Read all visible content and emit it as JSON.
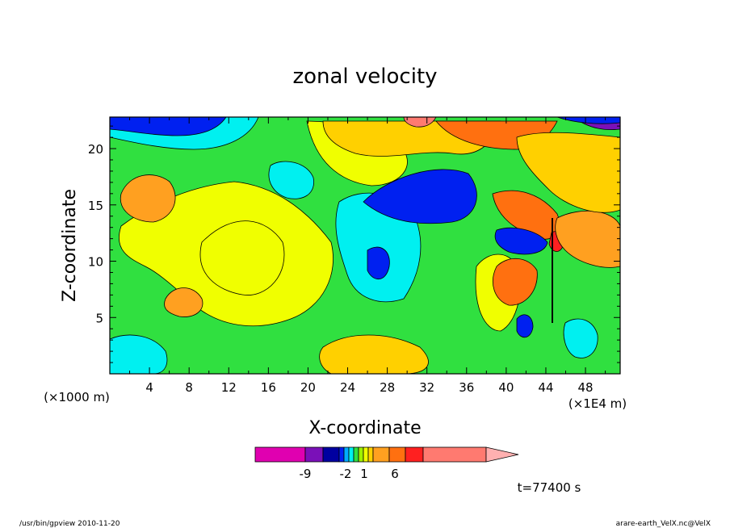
{
  "chart_data": {
    "type": "heatmap",
    "title": "zonal velocity",
    "xlabel": "X-coordinate",
    "ylabel": "Z-coordinate",
    "x_unit": "(×1E4 m)",
    "y_unit": "(×1000 m)",
    "x_ticks": [
      "4",
      "8",
      "12",
      "16",
      "20",
      "24",
      "28",
      "32",
      "36",
      "40",
      "44",
      "48"
    ],
    "y_ticks": [
      "5",
      "10",
      "15",
      "20"
    ],
    "xlim": [
      0,
      51.5
    ],
    "ylim": [
      0,
      22.8
    ],
    "colorbar": {
      "tick_labels": [
        "-9",
        "-2",
        "1",
        "6"
      ],
      "levels": [
        {
          "color": "#e000b0"
        },
        {
          "color": "#7a10b8"
        },
        {
          "color": "#0000a0"
        },
        {
          "color": "#0020f0"
        },
        {
          "color": "#00aaff"
        },
        {
          "color": "#00f0f0"
        },
        {
          "color": "#30e040"
        },
        {
          "color": "#a0f000"
        },
        {
          "color": "#f0ff00"
        },
        {
          "color": "#ffd000"
        },
        {
          "color": "#ffa020"
        },
        {
          "color": "#ff7010"
        },
        {
          "color": "#ff2020"
        },
        {
          "color": "#ff7a70"
        },
        {
          "color": "#ffb0b0"
        }
      ]
    },
    "time_label": "t=77400 s"
  },
  "footer": {
    "left": "/usr/bin/gpview   2010-11-20",
    "right": "arare-earth_VelX.nc@VelX"
  }
}
